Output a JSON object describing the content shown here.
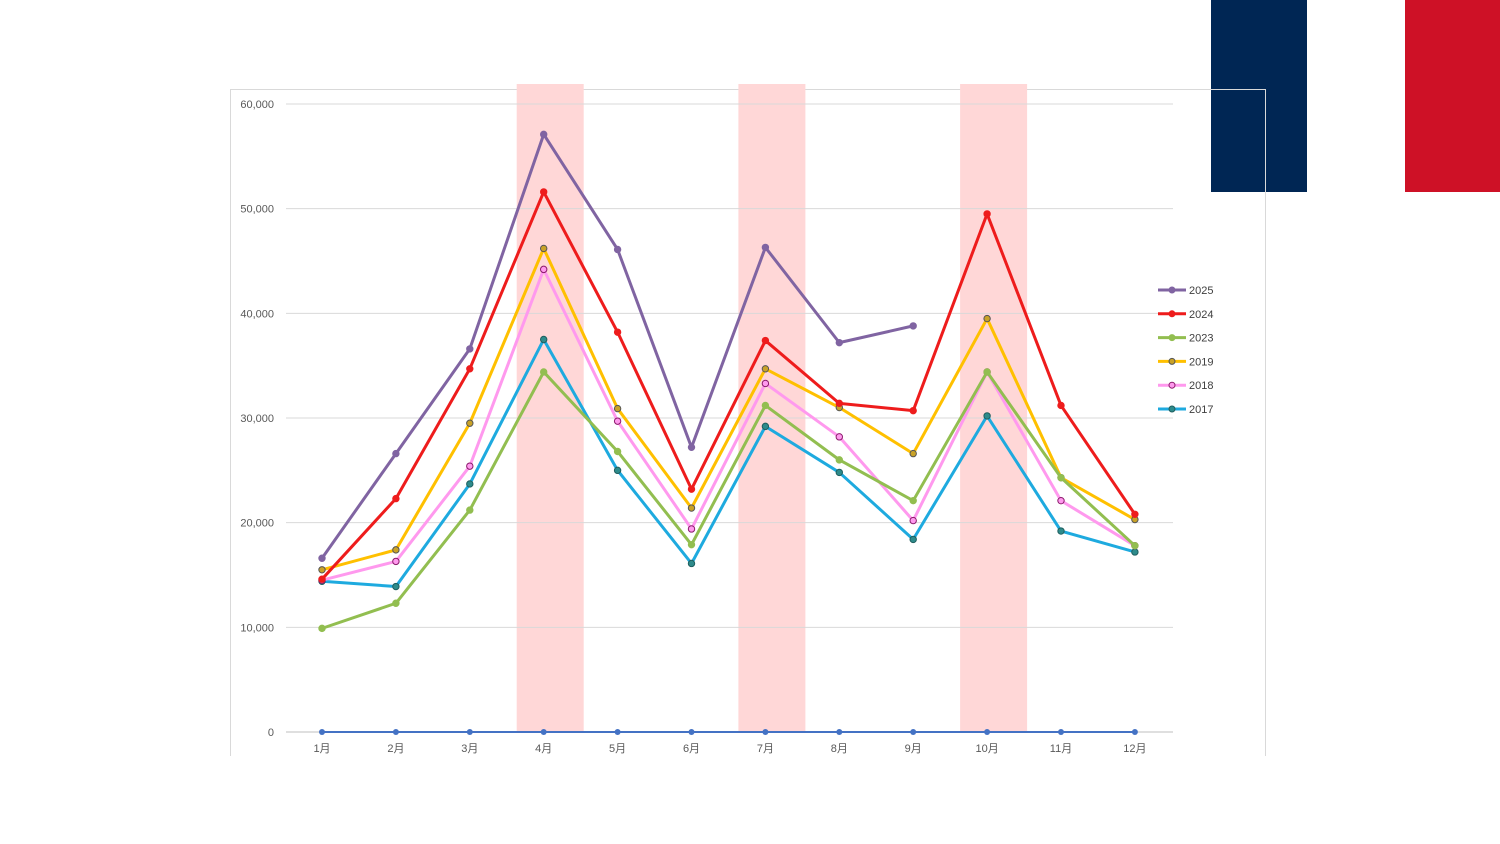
{
  "flag": {
    "colors": [
      "#002654",
      "#ffffff",
      "#CE1126"
    ]
  },
  "chart_data": {
    "type": "line",
    "categories": [
      "1月",
      "2月",
      "3月",
      "4月",
      "5月",
      "6月",
      "7月",
      "8月",
      "9月",
      "10月",
      "11月",
      "12月"
    ],
    "ylim": [
      0,
      60000
    ],
    "yticks": [
      0,
      10000,
      20000,
      30000,
      40000,
      50000,
      60000
    ],
    "ytick_labels": [
      "0",
      "10,000",
      "20,000",
      "30,000",
      "40,000",
      "50,000",
      "60,000"
    ],
    "grid": true,
    "legend_position": "right",
    "highlight_bands": {
      "categories": [
        "4月",
        "7月",
        "10月"
      ],
      "color": "#ffd7d7"
    },
    "baseline_series": {
      "values": [
        0,
        0,
        0,
        0,
        0,
        0,
        0,
        0,
        0,
        0,
        0,
        0
      ],
      "color": "#4472C4"
    },
    "series": [
      {
        "name": "2025",
        "color": "#8064A2",
        "marker_fill": "#8064A2",
        "marker_stroke": "#8064A2",
        "values": [
          16600,
          26600,
          36600,
          57100,
          46100,
          27200,
          46300,
          37200,
          38800,
          null,
          null,
          null
        ]
      },
      {
        "name": "2024",
        "color": "#EE1C1C",
        "marker_fill": "#EE1C1C",
        "marker_stroke": "#EE1C1C",
        "values": [
          14600,
          22300,
          34700,
          51600,
          38200,
          23200,
          37400,
          31400,
          30700,
          49500,
          31200,
          20800
        ]
      },
      {
        "name": "2023",
        "color": "#92BE50",
        "marker_fill": "#92BE50",
        "marker_stroke": "#92BE50",
        "values": [
          9900,
          12300,
          21200,
          34400,
          26800,
          17900,
          31200,
          26000,
          22100,
          34400,
          24300,
          17800
        ]
      },
      {
        "name": "2019",
        "color": "#FFC000",
        "marker_fill": "#C9A227",
        "marker_stroke": "#555555",
        "values": [
          15500,
          17400,
          29500,
          46200,
          30900,
          21400,
          34700,
          31000,
          26600,
          39500,
          24300,
          20300
        ]
      },
      {
        "name": "2018",
        "color": "#FF99EE",
        "marker_fill": "#FF99EE",
        "marker_stroke": "#8B1A6B",
        "values": [
          14500,
          16300,
          25400,
          44200,
          29700,
          19400,
          33300,
          28200,
          20200,
          34400,
          22100,
          17800
        ]
      },
      {
        "name": "2017",
        "color": "#1EAADF",
        "marker_fill": "#2E8B8B",
        "marker_stroke": "#1F5F5F",
        "values": [
          14400,
          13900,
          23700,
          37500,
          25000,
          16100,
          29200,
          24800,
          18400,
          30200,
          19200,
          17200
        ]
      }
    ]
  }
}
